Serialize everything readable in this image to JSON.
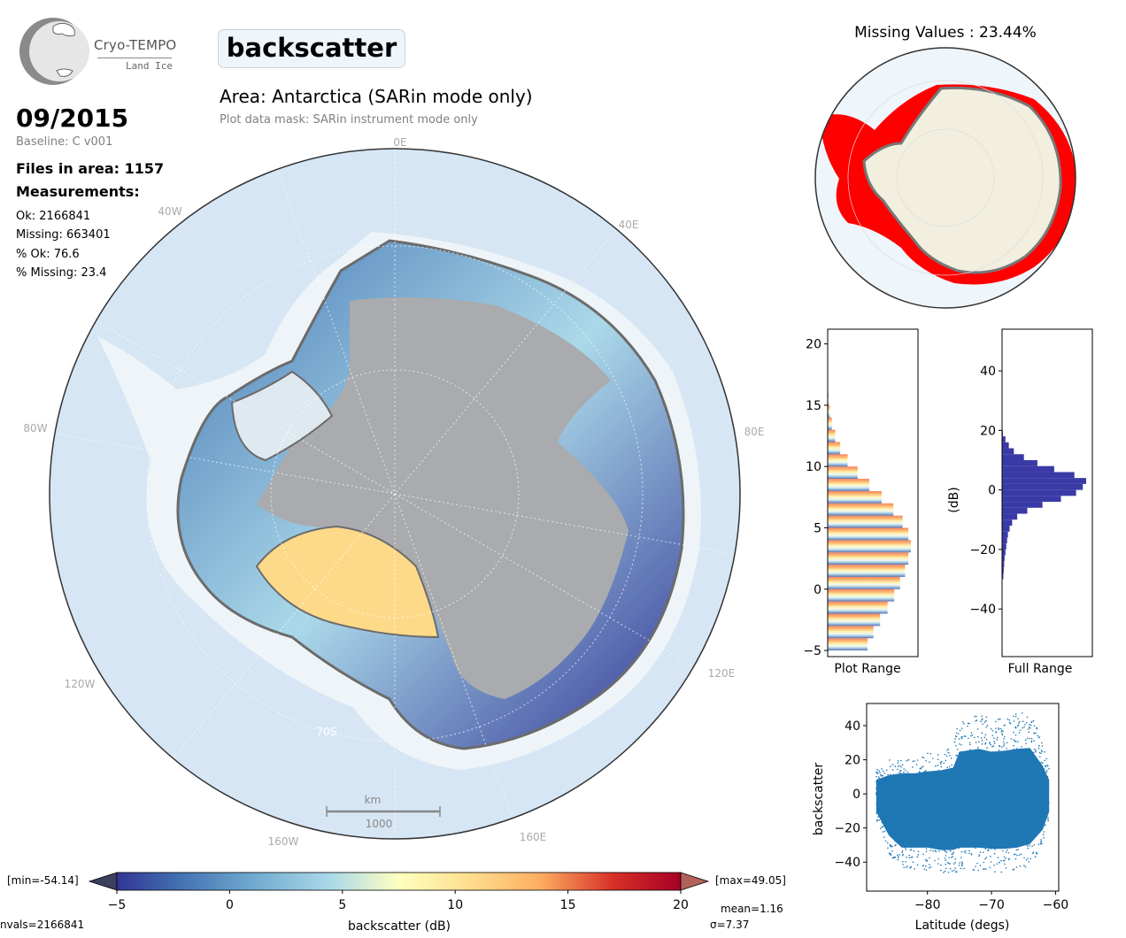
{
  "header": {
    "logo_name": "Cryo-TEMPO",
    "logo_sub": "Land Ice",
    "variable": "backscatter",
    "area_title": "Area: Antarctica (SARin mode only)",
    "mask_note": "Plot data mask: SARin instrument mode only"
  },
  "info": {
    "date": "09/2015",
    "baseline": "Baseline: C v001",
    "files": "Files in area: 1157",
    "measurements_heading": "Measurements:",
    "stats": [
      "Ok: 2166841",
      "Missing: 663401",
      "% Ok: 76.6",
      "% Missing: 23.4"
    ]
  },
  "main_map": {
    "lon_labels": [
      "0E",
      "40E",
      "80E",
      "120E",
      "160E",
      "160W",
      "120W",
      "80W",
      "40W"
    ],
    "lat_label": "70S",
    "scale_unit": "km",
    "scale_value": "1000",
    "colors": {
      "ocean": "#d6e6f4",
      "land_grey": "#a9abae",
      "ice_shelf": "#eef4f8"
    }
  },
  "missing_map": {
    "title": "Missing Values : 23.44%",
    "colors": {
      "ocean": "#eef5fb",
      "land": "#f2efdf",
      "missing": "#ff0000",
      "coast": "#777777"
    }
  },
  "colorbar": {
    "label": "backscatter (dB)",
    "ticks": [
      "-5",
      "0",
      "5",
      "10",
      "15",
      "20"
    ],
    "min_label": "[min=-54.14]",
    "max_label": "[max=49.05]",
    "mean_label": "mean=1.16",
    "sigma_label": "σ=7.37",
    "nvals_label": "nvals=2166841",
    "colors": {
      "low": "#313695",
      "mid": "#ffffbf",
      "high": "#a50026"
    }
  },
  "chart_data": [
    {
      "type": "bar",
      "name": "plot-range-histogram",
      "xlabel": "Plot Range",
      "ylim": [
        -5.5,
        21.2
      ],
      "y_ticks": [
        -5,
        0,
        5,
        10,
        15,
        20
      ],
      "bins": [
        -5,
        -4,
        -3,
        -2,
        -1,
        0,
        1,
        2,
        3,
        4,
        5,
        6,
        7,
        8,
        9,
        10,
        11,
        12,
        13,
        14,
        15,
        16
      ],
      "relative_counts": [
        0.48,
        0.55,
        0.63,
        0.72,
        0.8,
        0.87,
        0.93,
        0.97,
        1.0,
        0.97,
        0.9,
        0.79,
        0.65,
        0.5,
        0.36,
        0.24,
        0.15,
        0.09,
        0.05,
        0.025,
        0.01,
        0.002
      ]
    },
    {
      "type": "bar",
      "name": "full-range-histogram",
      "xlabel": "Full Range",
      "ylabel": "(dB)",
      "ylim": [
        -56,
        54
      ],
      "y_ticks": [
        -40,
        -20,
        0,
        20,
        40
      ],
      "bins": [
        -30,
        -28,
        -26,
        -24,
        -22,
        -20,
        -18,
        -16,
        -14,
        -12,
        -10,
        -8,
        -6,
        -4,
        -2,
        0,
        2,
        4,
        6,
        8,
        10,
        12,
        14,
        16,
        18
      ],
      "relative_counts": [
        0.015,
        0.02,
        0.025,
        0.03,
        0.04,
        0.05,
        0.06,
        0.07,
        0.09,
        0.12,
        0.18,
        0.3,
        0.48,
        0.7,
        0.88,
        0.96,
        1.0,
        0.86,
        0.62,
        0.42,
        0.26,
        0.14,
        0.08,
        0.04,
        0.01
      ],
      "color": "#3a3aa6"
    },
    {
      "type": "scatter",
      "name": "backscatter-vs-latitude",
      "xlabel": "Latitude (degs)",
      "ylabel": "backscatter",
      "xlim": [
        -89.5,
        -59.5
      ],
      "ylim": [
        -57,
        53
      ],
      "x_ticks": [
        -80,
        -70,
        -60
      ],
      "y_ticks": [
        -40,
        -20,
        0,
        20,
        40
      ],
      "color": "#1f77b4",
      "envelope": [
        {
          "lat": -88,
          "min": -15,
          "max": 15
        },
        {
          "lat": -86,
          "min": -35,
          "max": 20
        },
        {
          "lat": -84,
          "min": -45,
          "max": 22
        },
        {
          "lat": -82,
          "min": -45,
          "max": 22
        },
        {
          "lat": -80,
          "min": -45,
          "max": 24
        },
        {
          "lat": -78,
          "min": -47,
          "max": 25
        },
        {
          "lat": -76,
          "min": -47,
          "max": 28
        },
        {
          "lat": -75,
          "min": -45,
          "max": 45
        },
        {
          "lat": -72,
          "min": -45,
          "max": 48
        },
        {
          "lat": -70,
          "min": -46,
          "max": 45
        },
        {
          "lat": -68,
          "min": -46,
          "max": 46
        },
        {
          "lat": -66,
          "min": -45,
          "max": 48
        },
        {
          "lat": -64,
          "min": -42,
          "max": 49
        },
        {
          "lat": -62,
          "min": -30,
          "max": 30
        },
        {
          "lat": -61,
          "min": -15,
          "max": 15
        }
      ]
    }
  ]
}
